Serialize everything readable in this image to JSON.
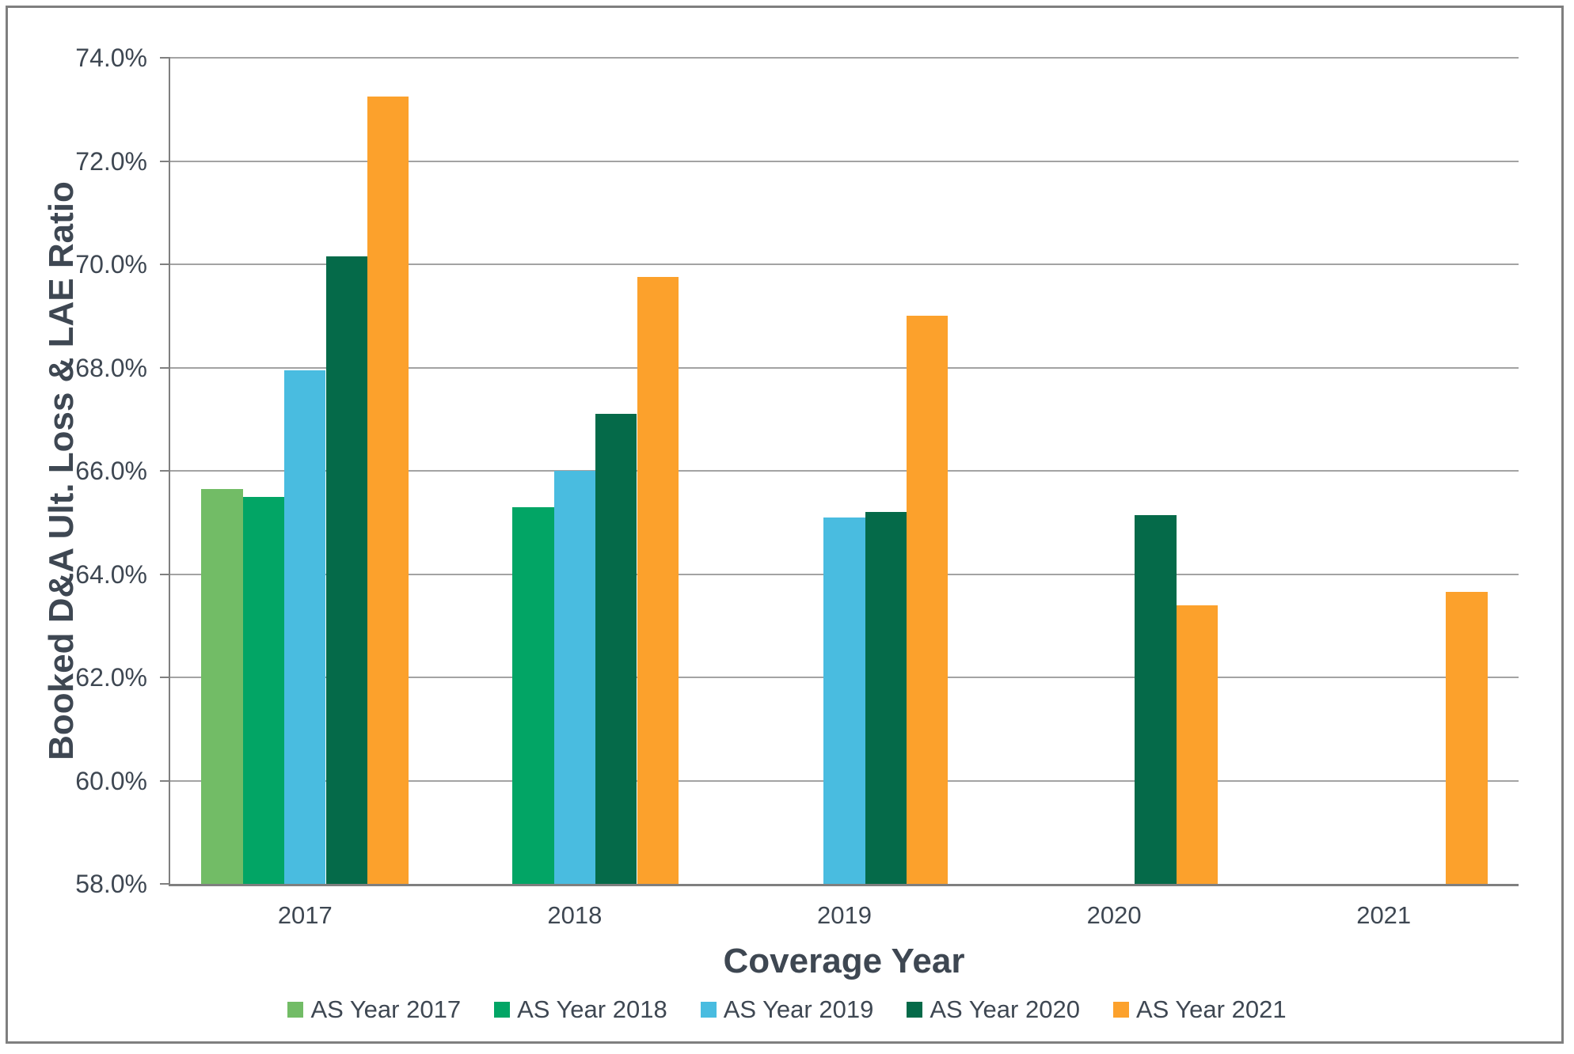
{
  "chart_data": {
    "type": "bar",
    "title": "",
    "categories": [
      "2017",
      "2018",
      "2019",
      "2020",
      "2021"
    ],
    "series": [
      {
        "name": "AS Year 2017",
        "color": "#72bc66",
        "values": [
          65.65,
          null,
          null,
          null,
          null
        ]
      },
      {
        "name": "AS Year 2018",
        "color": "#02a565",
        "values": [
          65.5,
          65.3,
          null,
          null,
          null
        ]
      },
      {
        "name": "AS Year 2019",
        "color": "#49bce0",
        "values": [
          67.95,
          66.0,
          65.1,
          null,
          null
        ]
      },
      {
        "name": "AS Year 2020",
        "color": "#056a49",
        "values": [
          70.15,
          67.1,
          65.2,
          65.15,
          null
        ]
      },
      {
        "name": "AS Year 2021",
        "color": "#fca12c",
        "values": [
          73.25,
          69.75,
          69.0,
          63.4,
          63.65
        ]
      }
    ],
    "xlabel": "Coverage Year",
    "ylabel": "Booked D&A Ult. Loss & LAE Ratio",
    "ylim": [
      58.0,
      74.0
    ],
    "ytick_step": 2.0,
    "ytick_labels": [
      "74.0%",
      "72.0%",
      "70.0%",
      "68.0%",
      "66.0%",
      "64.0%",
      "62.0%",
      "60.0%",
      "58.0%"
    ],
    "grid": true,
    "legend_position": "bottom",
    "gap_width_percent": 150
  },
  "colors": {
    "background": "#ffffff",
    "frame_border": "#7f7f7f",
    "gridline": "#a3a3a3",
    "axis_line": "#7f7f7f",
    "text": "#3e4752"
  }
}
